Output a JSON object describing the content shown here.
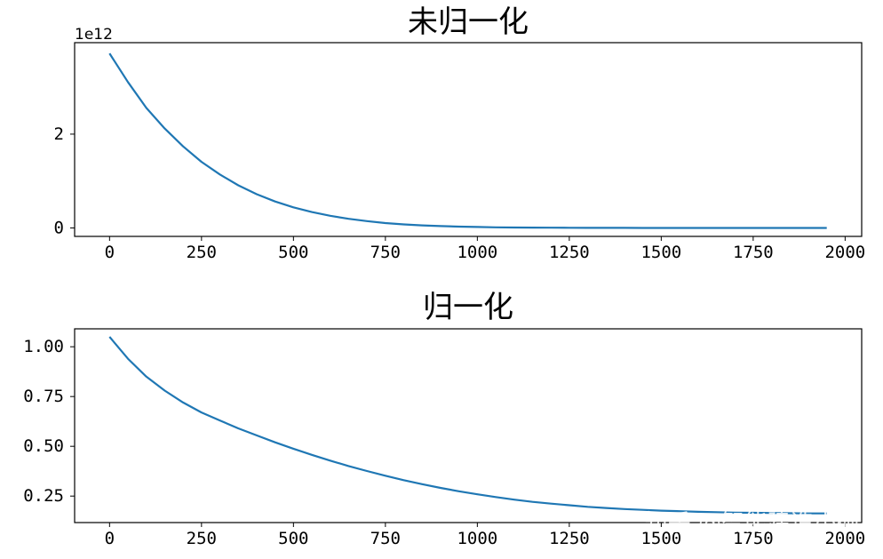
{
  "chart_data": [
    {
      "type": "line",
      "title": "未归一化",
      "offset_label": "1e12",
      "x_ticks": [
        0,
        250,
        500,
        750,
        1000,
        1250,
        1500,
        1750,
        2000
      ],
      "y_ticks": [
        0,
        2
      ],
      "xlim": [
        -95,
        2045
      ],
      "ylim": [
        -0.18,
        3.95
      ],
      "x": [
        0,
        50,
        100,
        150,
        200,
        250,
        300,
        350,
        400,
        450,
        500,
        550,
        600,
        650,
        700,
        750,
        800,
        850,
        900,
        950,
        1000,
        1050,
        1100,
        1150,
        1200,
        1250,
        1300,
        1350,
        1400,
        1450,
        1500,
        1550,
        1600,
        1650,
        1700,
        1750,
        1800,
        1850,
        1900,
        1950
      ],
      "series": [
        {
          "color": "#1f77b4",
          "values": [
            3.72,
            3.11,
            2.56,
            2.12,
            1.74,
            1.41,
            1.14,
            0.91,
            0.72,
            0.565,
            0.44,
            0.34,
            0.26,
            0.195,
            0.145,
            0.105,
            0.076,
            0.055,
            0.04,
            0.029,
            0.02,
            0.014,
            0.01,
            0.007,
            0.005,
            0.0035,
            0.0025,
            0.0017,
            0.0012,
            0.0008,
            0.0006,
            0.0004,
            0.0003,
            0.0002,
            0.00015,
            0.0001,
            7e-05,
            5e-05,
            3e-05,
            2e-05
          ]
        }
      ]
    },
    {
      "type": "line",
      "title": "归一化",
      "x_ticks": [
        0,
        250,
        500,
        750,
        1000,
        1250,
        1500,
        1750,
        2000
      ],
      "y_ticks": [
        "0.25",
        "0.50",
        "0.75",
        "1.00"
      ],
      "xlim": [
        -95,
        2045
      ],
      "ylim": [
        0.117,
        1.09
      ],
      "x": [
        0,
        50,
        100,
        150,
        200,
        250,
        300,
        350,
        400,
        450,
        500,
        550,
        600,
        650,
        700,
        750,
        800,
        850,
        900,
        950,
        1000,
        1050,
        1100,
        1150,
        1200,
        1250,
        1300,
        1350,
        1400,
        1450,
        1500,
        1550,
        1600,
        1650,
        1700,
        1750,
        1800,
        1850,
        1900,
        1950
      ],
      "series": [
        {
          "color": "#1f77b4",
          "values": [
            1.05,
            0.94,
            0.85,
            0.78,
            0.72,
            0.67,
            0.63,
            0.59,
            0.555,
            0.52,
            0.488,
            0.457,
            0.428,
            0.401,
            0.376,
            0.352,
            0.33,
            0.31,
            0.291,
            0.274,
            0.259,
            0.245,
            0.232,
            0.221,
            0.212,
            0.204,
            0.196,
            0.19,
            0.185,
            0.181,
            0.177,
            0.174,
            0.171,
            0.169,
            0.167,
            0.166,
            0.165,
            0.164,
            0.163,
            0.163
          ]
        }
      ]
    }
  ],
  "watermark": "知乎 @智能建造小硕"
}
